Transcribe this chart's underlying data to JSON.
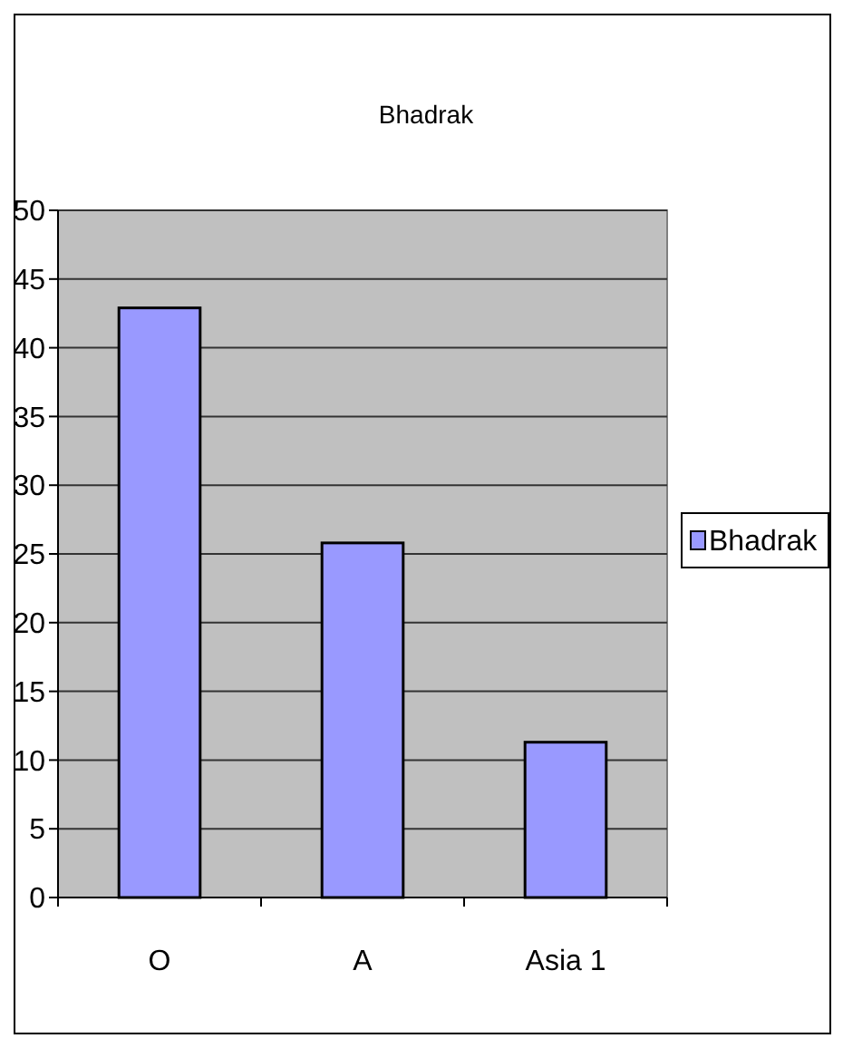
{
  "chart_data": {
    "type": "bar",
    "title": "Bhadrak",
    "categories": [
      "O",
      "A",
      "Asia 1"
    ],
    "series": [
      {
        "name": "Bhadrak",
        "color": "#9999ff",
        "values": [
          42.9,
          25.8,
          11.3
        ]
      }
    ],
    "ylim": [
      0,
      50
    ],
    "yticks": [
      0,
      5,
      10,
      15,
      20,
      25,
      30,
      35,
      40,
      45,
      50
    ],
    "grid": "y",
    "legend": "right"
  }
}
